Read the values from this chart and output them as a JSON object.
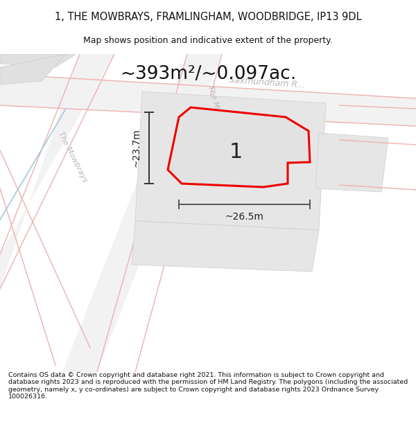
{
  "title": "1, THE MOWBRAYS, FRAMLINGHAM, WOODBRIDGE, IP13 9DL",
  "subtitle": "Map shows position and indicative extent of the property.",
  "area_text": "~393m²/~0.097ac.",
  "dim_v": "~23.7m",
  "dim_h": "~26.5m",
  "label": "1",
  "footer": "Contains OS data © Crown copyright and database right 2021. This information is subject to Crown copyright and database rights 2023 and is reproduced with the permission of HM Land Registry. The polygons (including the associated geometry, namely x, y co-ordinates) are subject to Crown copyright and database rights 2023 Ordnance Survey 100026316.",
  "bg_color": "#ffffff",
  "map_bg": "#f8f8f8",
  "plot_fill": "#e2e2e2",
  "plot_outline": "#ee0000",
  "street_label_color": "#b8b8b8",
  "title_color": "#111111",
  "area_color": "#111111",
  "dim_color": "#222222",
  "label_color": "#222222",
  "footer_color": "#111111",
  "building_fill": "#e0e0e0",
  "building_edge": "#cccccc",
  "road_fill": "#f0f0f0",
  "pink_line": "#f0b0b0",
  "blue_line": "#a0c8e0"
}
